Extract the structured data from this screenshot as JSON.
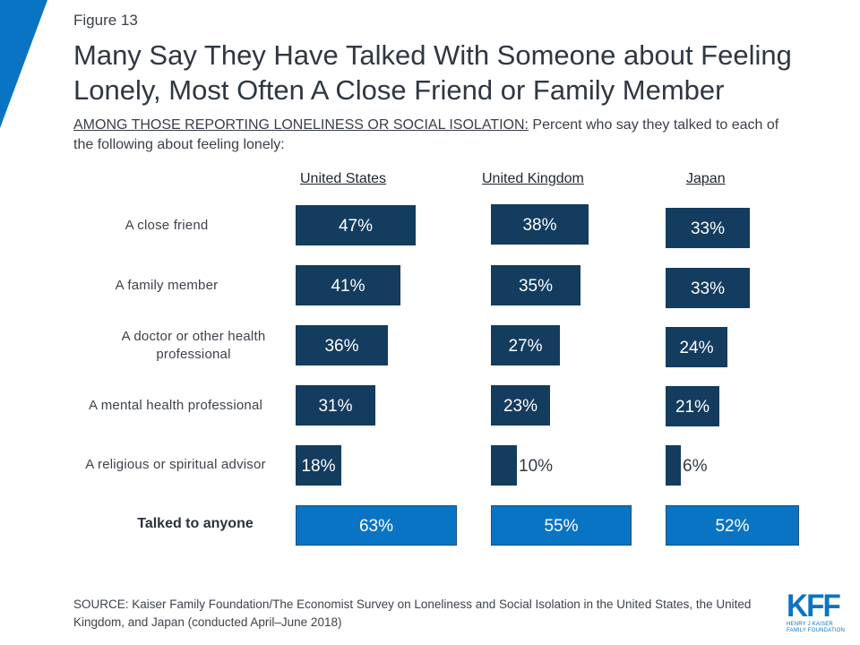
{
  "header": {
    "figure_label": "Figure 13",
    "title": "Many Say They Have Talked With Someone about Feeling Lonely, Most Often A Close Friend or Family Member",
    "subtitle_underlined": "AMONG THOSE REPORTING LONELINESS OR SOCIAL ISOLATION:",
    "subtitle_rest": " Percent who say they talked to each of the following about feeling lonely:"
  },
  "colors": {
    "accent_corner": "#0a74c4",
    "bar_dark": "#133c5f",
    "bar_total": "#0a74c4",
    "text": "#333b45"
  },
  "chart_data": {
    "type": "bar",
    "orientation": "horizontal",
    "title": "Many Say They Have Talked With Someone about Feeling Lonely, Most Often A Close Friend or Family Member",
    "categories": [
      "A close friend",
      "A family member",
      "A doctor or other health professional",
      "A mental health professional",
      "A religious or spiritual advisor",
      "Talked to anyone"
    ],
    "series": [
      {
        "name": "United States",
        "values": [
          47,
          41,
          36,
          31,
          18,
          63
        ]
      },
      {
        "name": "United Kingdom",
        "values": [
          38,
          35,
          27,
          23,
          10,
          55
        ]
      },
      {
        "name": "Japan",
        "values": [
          33,
          33,
          24,
          21,
          6,
          52
        ]
      }
    ],
    "value_suffix": "%",
    "highlight_category": "Talked to anyone",
    "layout": "small-multiples",
    "xlabel": "",
    "ylabel": "",
    "xlim": [
      0,
      100
    ],
    "grid": false,
    "legend": "column-headers"
  },
  "footer": {
    "source": "SOURCE: Kaiser Family Foundation/The Economist Survey on Loneliness and Social Isolation in the United States, the United Kingdom, and Japan (conducted April–June 2018)",
    "logo_text": "KFF",
    "logo_sub_1": "HENRY J KAISER",
    "logo_sub_2": "FAMILY FOUNDATION"
  }
}
